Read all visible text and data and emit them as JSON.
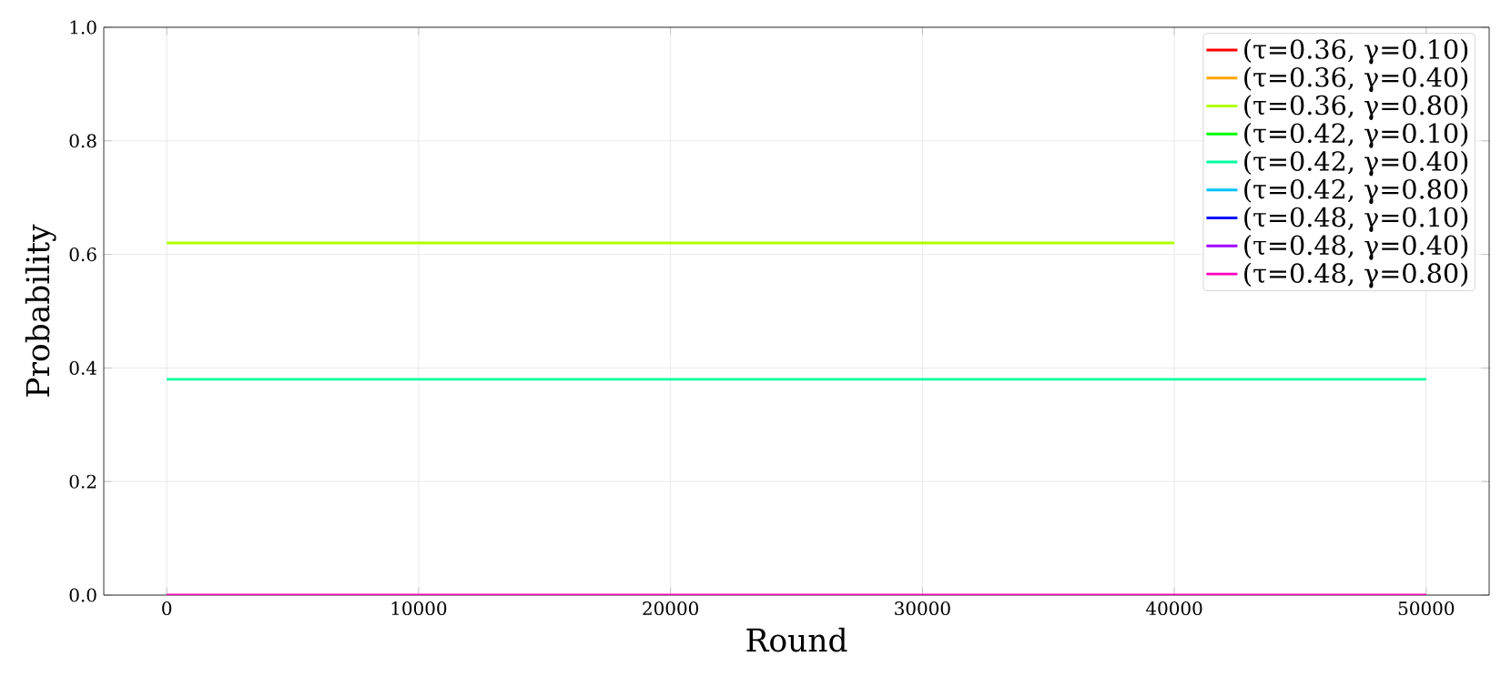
{
  "chart_data": {
    "type": "line",
    "xlabel": "Round",
    "ylabel": "Probability",
    "xlim": [
      -2500,
      52500
    ],
    "ylim": [
      0,
      1
    ],
    "xticks": [
      0,
      10000,
      20000,
      30000,
      40000,
      50000
    ],
    "yticks": [
      {
        "value": 0,
        "label": "0.0"
      },
      {
        "value": 0.2,
        "label": "0.2"
      },
      {
        "value": 0.4,
        "label": "0.4"
      },
      {
        "value": 0.6,
        "label": "0.6"
      },
      {
        "value": 0.8,
        "label": "0.8"
      },
      {
        "value": 1,
        "label": "1.0"
      }
    ],
    "grid": true,
    "legend": "top right",
    "marker": "none",
    "line_style": "solid",
    "x": [
      0,
      50000
    ],
    "series": [
      {
        "name": "(τ=0.36, γ=0.10)",
        "color": "#ff0000",
        "values": [
          null,
          null
        ]
      },
      {
        "name": "(τ=0.36, γ=0.40)",
        "color": "#ffa500",
        "values": [
          null,
          null
        ]
      },
      {
        "name": "(τ=0.36, γ=0.80)",
        "color": "#b0ff00",
        "x": [
          0,
          40000
        ],
        "values": [
          0.62,
          0.62
        ]
      },
      {
        "name": "(τ=0.42, γ=0.10)",
        "color": "#00ff00",
        "values": [
          null,
          null
        ]
      },
      {
        "name": "(τ=0.42, γ=0.40)",
        "color": "#00ffa0",
        "values": [
          0.38,
          0.38
        ]
      },
      {
        "name": "(τ=0.42, γ=0.80)",
        "color": "#00c0ff",
        "values": [
          null,
          null
        ]
      },
      {
        "name": "(τ=0.48, γ=0.10)",
        "color": "#0010ff",
        "values": [
          null,
          null
        ]
      },
      {
        "name": "(τ=0.48, γ=0.40)",
        "color": "#a000ff",
        "values": [
          null,
          null
        ]
      },
      {
        "name": "(τ=0.48, γ=0.80)",
        "color": "#ff00c0",
        "values": [
          0,
          0
        ]
      }
    ]
  }
}
